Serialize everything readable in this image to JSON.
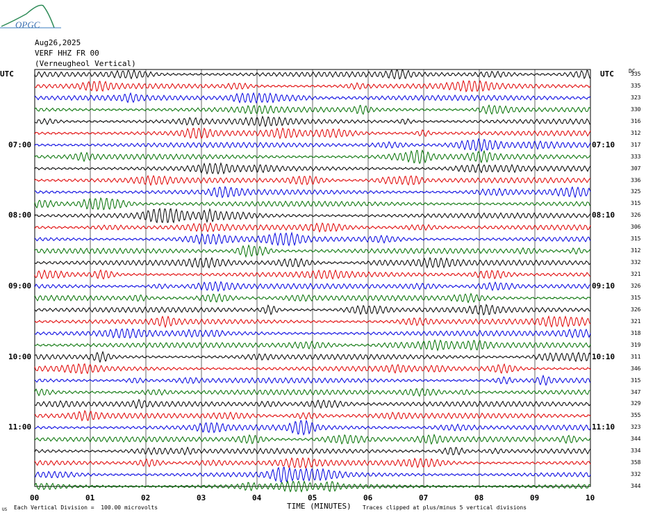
{
  "header": {
    "logo_text": "OPGC",
    "date": "Aug26,2025",
    "station": "VERF HHZ FR 00",
    "station_name": "(Verneugheol Vertical)"
  },
  "axis": {
    "utc_left": "UTC",
    "utc_right": "UTC",
    "dc_label": "DC",
    "xlabel": "TIME (MINUTES)",
    "footer_left": "Each Vertical Division =  100.00 microvolts",
    "footer_right": "Traces clipped at plus/minus 5 vertical divisions",
    "corner_mark": "US"
  },
  "chart_data": {
    "type": "line",
    "title": "VERF HHZ FR 00 (Verneugheol Vertical)",
    "xlabel": "TIME (MINUTES)",
    "xlim": [
      0,
      10
    ],
    "x_ticks": [
      "00",
      "01",
      "02",
      "03",
      "04",
      "05",
      "06",
      "07",
      "08",
      "09",
      "10"
    ],
    "left_time_labels": [
      "07:00",
      "08:00",
      "09:00",
      "10:00",
      "11:00"
    ],
    "right_time_labels": [
      "07:10",
      "08:10",
      "09:10",
      "10:10",
      "11:10"
    ],
    "trace_colors": [
      "#000000",
      "#e00000",
      "#0000e0",
      "#007000"
    ],
    "trace_count": 36,
    "dc_offsets": [
      335,
      335,
      323,
      330,
      316,
      312,
      317,
      333,
      307,
      336,
      325,
      315,
      326,
      306,
      315,
      312,
      332,
      321,
      326,
      315,
      326,
      321,
      318,
      319,
      311,
      346,
      315,
      347,
      329,
      355,
      323,
      344,
      334,
      358,
      332,
      344
    ],
    "grid": true
  }
}
